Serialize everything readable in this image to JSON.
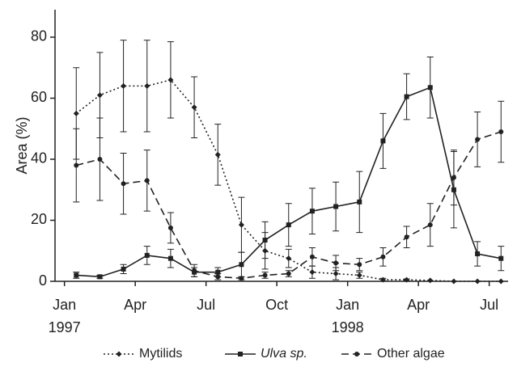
{
  "chart_data": {
    "type": "line",
    "y_label": "Area (%)",
    "x": [
      0.5,
      1.5,
      2.5,
      3.5,
      4.5,
      5.5,
      6.5,
      7.5,
      8.5,
      9.5,
      10.5,
      11.5,
      12.5,
      13.5,
      14.5,
      15.5,
      16.5,
      17.5,
      18.5
    ],
    "xlim": [
      -0.4,
      18.8
    ],
    "xticks": [
      {
        "value": 0,
        "label": "Jan"
      },
      {
        "value": 3,
        "label": "Apr"
      },
      {
        "value": 6,
        "label": "Jul"
      },
      {
        "value": 9,
        "label": "Oct"
      },
      {
        "value": 12,
        "label": "Jan"
      },
      {
        "value": 15,
        "label": "Apr"
      },
      {
        "value": 18,
        "label": "Jul"
      }
    ],
    "year_labels": [
      {
        "value": 0,
        "label": "1997"
      },
      {
        "value": 12,
        "label": "1998"
      }
    ],
    "ylim": [
      0,
      89
    ],
    "yticks": [
      0,
      20,
      40,
      60,
      80
    ],
    "series": [
      {
        "name": "Mytilids",
        "color": "#222",
        "line_style": "dotted",
        "marker": "diamond",
        "values": [
          55,
          61,
          64,
          64,
          66,
          57,
          41.5,
          18.5,
          10,
          7.5,
          3,
          2.5,
          2,
          0.5,
          0.5,
          0.3,
          0,
          0,
          0
        ],
        "errors": [
          15,
          14,
          15,
          15,
          12.5,
          10,
          10,
          9,
          6,
          3,
          2,
          2,
          1,
          0.5,
          0.3,
          0,
          0,
          0,
          0
        ]
      },
      {
        "name": "Ulva sp.",
        "color": "#222",
        "line_style": "solid",
        "marker": "square",
        "values": [
          2,
          1.5,
          4,
          8.5,
          7.5,
          3,
          3,
          5.5,
          13.5,
          18.5,
          23,
          24.5,
          26,
          46,
          60.5,
          63.5,
          30,
          9,
          7.5
        ],
        "errors": [
          1,
          0.5,
          1.5,
          3,
          3,
          1.5,
          1.5,
          4,
          6,
          7,
          7.5,
          8,
          10,
          9,
          7.5,
          10,
          12.5,
          4,
          4
        ]
      },
      {
        "name": "Other algae",
        "color": "#222",
        "line_style": "dashed",
        "marker": "circle",
        "values": [
          38,
          40,
          32,
          33,
          17.5,
          3.5,
          1.5,
          1,
          2,
          2.5,
          8,
          6,
          5.5,
          8,
          14.5,
          18.5,
          34,
          46.5,
          49
        ],
        "errors": [
          12,
          13.5,
          10,
          10,
          5,
          2,
          1,
          0.5,
          1,
          1,
          3,
          2.5,
          2,
          3,
          3.5,
          7,
          9,
          9,
          10
        ]
      }
    ]
  }
}
